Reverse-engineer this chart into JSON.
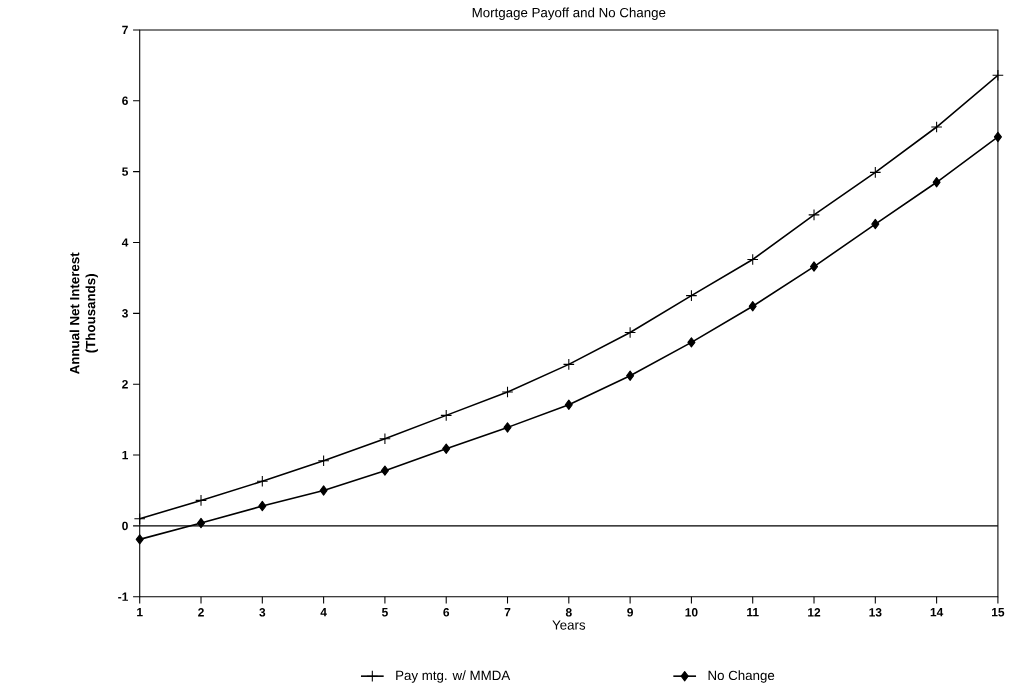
{
  "chart_data": {
    "type": "line",
    "title": "Mortgage Payoff and No Change",
    "xlabel": "Years",
    "ylabel": "Annual Net Interest\n(Thousands)",
    "x": [
      1,
      2,
      3,
      4,
      5,
      6,
      7,
      8,
      9,
      10,
      11,
      12,
      13,
      14,
      15
    ],
    "series": [
      {
        "name": "Pay mtg. w/ MMDA",
        "color": "#000000",
        "marker": "cross",
        "values": [
          0.1,
          0.36,
          0.63,
          0.92,
          1.23,
          1.56,
          1.89,
          2.28,
          2.73,
          3.25,
          3.76,
          4.39,
          4.99,
          5.63,
          6.36
        ]
      },
      {
        "name": "No Change",
        "color": "#000000",
        "marker": "diamond",
        "values": [
          -0.19,
          0.04,
          0.28,
          0.5,
          0.78,
          1.09,
          1.39,
          1.71,
          2.12,
          2.59,
          3.1,
          3.66,
          4.26,
          4.85,
          5.49
        ]
      }
    ],
    "xlim": [
      1,
      15
    ],
    "xticks": [
      1,
      2,
      3,
      4,
      5,
      6,
      7,
      8,
      9,
      10,
      11,
      12,
      13,
      14,
      15
    ],
    "ylim": [
      -1,
      7
    ],
    "yticks": [
      -1,
      0,
      1,
      2,
      3,
      4,
      5,
      6,
      7
    ],
    "ref_lines": [
      {
        "axis": "y",
        "value": 0
      }
    ],
    "grid": false,
    "legend": "bottom",
    "line_style": "solid"
  }
}
